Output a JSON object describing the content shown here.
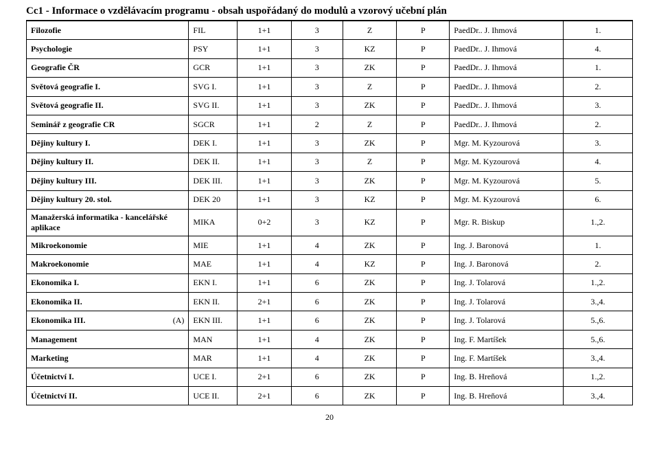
{
  "header": "Cc1 - Informace o vzdělávacím programu - obsah uspořádaný do modulů  a vzorový učební plán",
  "pageNumber": "20",
  "rows": [
    {
      "name": "Filozofie",
      "code": "FIL",
      "c3": "1+1",
      "c4": "3",
      "c5": "Z",
      "c6": "P",
      "teacher": "PaedDr.. J. Ihmová",
      "c8": "1."
    },
    {
      "name": "Psychologie",
      "code": "PSY",
      "c3": "1+1",
      "c4": "3",
      "c5": "KZ",
      "c6": "P",
      "teacher": "PaedDr.. J. Ihmová",
      "c8": "4."
    },
    {
      "name": "Geografie ČR",
      "code": "GCR",
      "c3": "1+1",
      "c4": "3",
      "c5": "ZK",
      "c6": "P",
      "teacher": "PaedDr.. J. Ihmová",
      "c8": "1."
    },
    {
      "name": "Světová geografie I.",
      "code": "SVG I.",
      "c3": "1+1",
      "c4": "3",
      "c5": "Z",
      "c6": "P",
      "teacher": "PaedDr.. J. Ihmová",
      "c8": "2."
    },
    {
      "name": "Světová geografie II.",
      "code": "SVG II.",
      "c3": "1+1",
      "c4": "3",
      "c5": "ZK",
      "c6": "P",
      "teacher": "PaedDr.. J. Ihmová",
      "c8": "3."
    },
    {
      "name": "Seminář z geografie CR",
      "code": "SGCR",
      "c3": "1+1",
      "c4": "2",
      "c5": "Z",
      "c6": "P",
      "teacher": "PaedDr.. J. Ihmová",
      "c8": "2."
    },
    {
      "name": "Dějiny kultury I.",
      "code": "DEK I.",
      "c3": "1+1",
      "c4": "3",
      "c5": "ZK",
      "c6": "P",
      "teacher": "Mgr. M. Kyzourová",
      "c8": "3."
    },
    {
      "name": "Dějiny kultury II.",
      "code": "DEK II.",
      "c3": "1+1",
      "c4": "3",
      "c5": "Z",
      "c6": "P",
      "teacher": "Mgr. M. Kyzourová",
      "c8": "4."
    },
    {
      "name": "Dějiny kultury III.",
      "code": "DEK III.",
      "c3": "1+1",
      "c4": "3",
      "c5": "ZK",
      "c6": "P",
      "teacher": "Mgr. M. Kyzourová",
      "c8": "5."
    },
    {
      "name": "Dějiny kultury 20. stol.",
      "code": "DEK 20",
      "c3": "1+1",
      "c4": "3",
      "c5": "KZ",
      "c6": "P",
      "teacher": "Mgr. M. Kyzourová",
      "c8": "6."
    },
    {
      "name": "Manažerská informatika - kancelářské aplikace",
      "code": "MIKA",
      "c3": "0+2",
      "c4": "3",
      "c5": "KZ",
      "c6": "P",
      "teacher": "Mgr. R. Biskup",
      "c8": "1.,2."
    },
    {
      "name": "Mikroekonomie",
      "code": "MIE",
      "c3": "1+1",
      "c4": "4",
      "c5": "ZK",
      "c6": "P",
      "teacher": "Ing. J. Baronová",
      "c8": "1."
    },
    {
      "name": "Makroekonomie",
      "code": "MAE",
      "c3": "1+1",
      "c4": "4",
      "c5": "KZ",
      "c6": "P",
      "teacher": "Ing. J. Baronová",
      "c8": "2."
    },
    {
      "name": "Ekonomika I.",
      "code": "EKN I.",
      "c3": "1+1",
      "c4": "6",
      "c5": "ZK",
      "c6": "P",
      "teacher": "Ing. J. Tolarová",
      "c8": "1.,2."
    },
    {
      "name": "Ekonomika II.",
      "code": "EKN II.",
      "c3": "2+1",
      "c4": "6",
      "c5": "ZK",
      "c6": "P",
      "teacher": "Ing. J. Tolarová",
      "c8": "3.,4."
    },
    {
      "name": "Ekonomika III.",
      "suffix": "(A)",
      "code": "EKN III.",
      "c3": "1+1",
      "c4": "6",
      "c5": "ZK",
      "c6": "P",
      "teacher": "Ing. J. Tolarová",
      "c8": "5.,6."
    },
    {
      "name": "Management",
      "code": "MAN",
      "c3": "1+1",
      "c4": "4",
      "c5": "ZK",
      "c6": "P",
      "teacher": "Ing. F. Martíšek",
      "c8": "5.,6."
    },
    {
      "name": "Marketing",
      "code": "MAR",
      "c3": "1+1",
      "c4": "4",
      "c5": "ZK",
      "c6": "P",
      "teacher": "Ing. F. Martíšek",
      "c8": "3.,4."
    },
    {
      "name": "Účetnictví I.",
      "code": "UCE I.",
      "c3": "2+1",
      "c4": "6",
      "c5": "ZK",
      "c6": "P",
      "teacher": "Ing. B. Hreňová",
      "c8": "1.,2."
    },
    {
      "name": "Účetnictví II.",
      "code": "UCE II.",
      "c3": "2+1",
      "c4": "6",
      "c5": "ZK",
      "c6": "P",
      "teacher": "Ing. B. Hreňová",
      "c8": "3.,4."
    }
  ]
}
